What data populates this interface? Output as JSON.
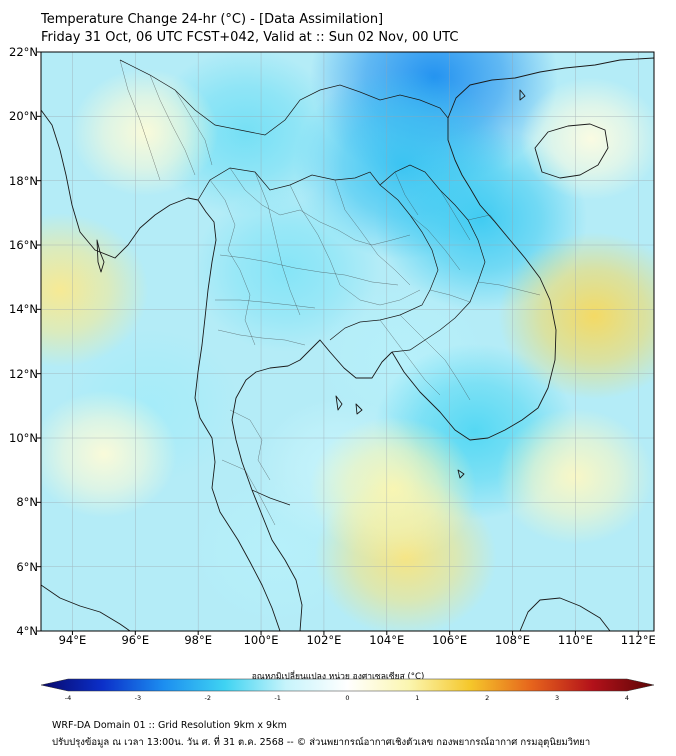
{
  "title": {
    "line1": "Temperature Change 24-hr (°C) - [Data Assimilation]",
    "line2": "Friday 31 Oct, 06 UTC FCST+042, Valid at :: Sun 02 Nov, 00 UTC"
  },
  "map": {
    "variable": "24-hour temperature change (°C)",
    "lat_labels": [
      "22°N",
      "20°N",
      "18°N",
      "16°N",
      "14°N",
      "12°N",
      "10°N",
      "8°N",
      "6°N",
      "4°N"
    ],
    "lon_labels": [
      "94°E",
      "96°E",
      "98°E",
      "100°E",
      "102°E",
      "104°E",
      "106°E",
      "108°E",
      "110°E",
      "112°E"
    ],
    "lat_range": [
      4,
      22
    ],
    "lon_range": [
      93,
      112.5
    ],
    "field_blobs": [
      {
        "region": "Gulf of Tonkin / N Vietnam",
        "lon": 105.5,
        "lat": 21.2,
        "value": -2.4
      },
      {
        "region": "Laos / N Vietnam",
        "lon": 104.5,
        "lat": 18.5,
        "value": -1.8
      },
      {
        "region": "Central Vietnam",
        "lon": 107.0,
        "lat": 16.8,
        "value": -1.7
      },
      {
        "region": "Northern Thailand",
        "lon": 99.5,
        "lat": 19.5,
        "value": -1.3
      },
      {
        "region": "Central Thailand",
        "lon": 100.8,
        "lat": 15.2,
        "value": -1.2
      },
      {
        "region": "Cambodia",
        "lon": 104.5,
        "lat": 12.5,
        "value": -0.9
      },
      {
        "region": "South Vietnam coast",
        "lon": 106.8,
        "lat": 10.2,
        "value": -1.5
      },
      {
        "region": "Andaman Sea",
        "lon": 96.5,
        "lat": 11.0,
        "value": -1.0
      },
      {
        "region": "Malay Peninsula",
        "lon": 100.5,
        "lat": 6.5,
        "value": -0.9
      },
      {
        "region": "Gulf of Thailand",
        "lon": 102.5,
        "lat": 9.0,
        "value": -0.8
      },
      {
        "region": "Bay of Bengal east",
        "lon": 93.6,
        "lat": 14.6,
        "value": 1.0
      },
      {
        "region": "South China Sea (east)",
        "lon": 110.6,
        "lat": 13.8,
        "value": 1.3
      },
      {
        "region": "South China Sea south",
        "lon": 104.6,
        "lat": 6.3,
        "value": 1.1
      },
      {
        "region": "South China Sea",
        "lon": 104.2,
        "lat": 8.4,
        "value": 0.8
      },
      {
        "region": "South China Sea SE",
        "lon": 110.0,
        "lat": 8.8,
        "value": 0.6
      },
      {
        "region": "Bay of Bengal south",
        "lon": 95.0,
        "lat": 9.5,
        "value": 0.4
      },
      {
        "region": "Hainan area",
        "lon": 110.5,
        "lat": 19.3,
        "value": 0.3
      },
      {
        "region": "Myanmar highlands",
        "lon": 96.3,
        "lat": 19.5,
        "value": 0.4
      }
    ]
  },
  "colorbar": {
    "title": "อุณหภูมิเปลี่ยนแปลง หน่วย องศาเซลเซียส (°C)",
    "ticks": [
      "-4",
      "-3",
      "-2",
      "-1",
      "0",
      "1",
      "2",
      "3",
      "4"
    ],
    "range": [
      -4,
      4
    ],
    "stops": [
      "#08086a",
      "#0b2fc9",
      "#1c8ef0",
      "#3fd3f2",
      "#c7f4fb",
      "#ffffff",
      "#fbf6b0",
      "#f5c72b",
      "#e6641c",
      "#b3111a",
      "#5b0606"
    ]
  },
  "footer": {
    "line1": "WRF-DA Domain 01 :: Grid Resolution 9km x 9km",
    "line2": "ปรับปรุงข้อมูล ณ เวลา 13:00น. วัน ศ. ที่ 31 ต.ค. 2568 -- © ส่วนพยากรณ์อากาศเชิงตัวเลข กองพยากรณ์อากาศ กรมอุตุนิยมวิทยา"
  }
}
